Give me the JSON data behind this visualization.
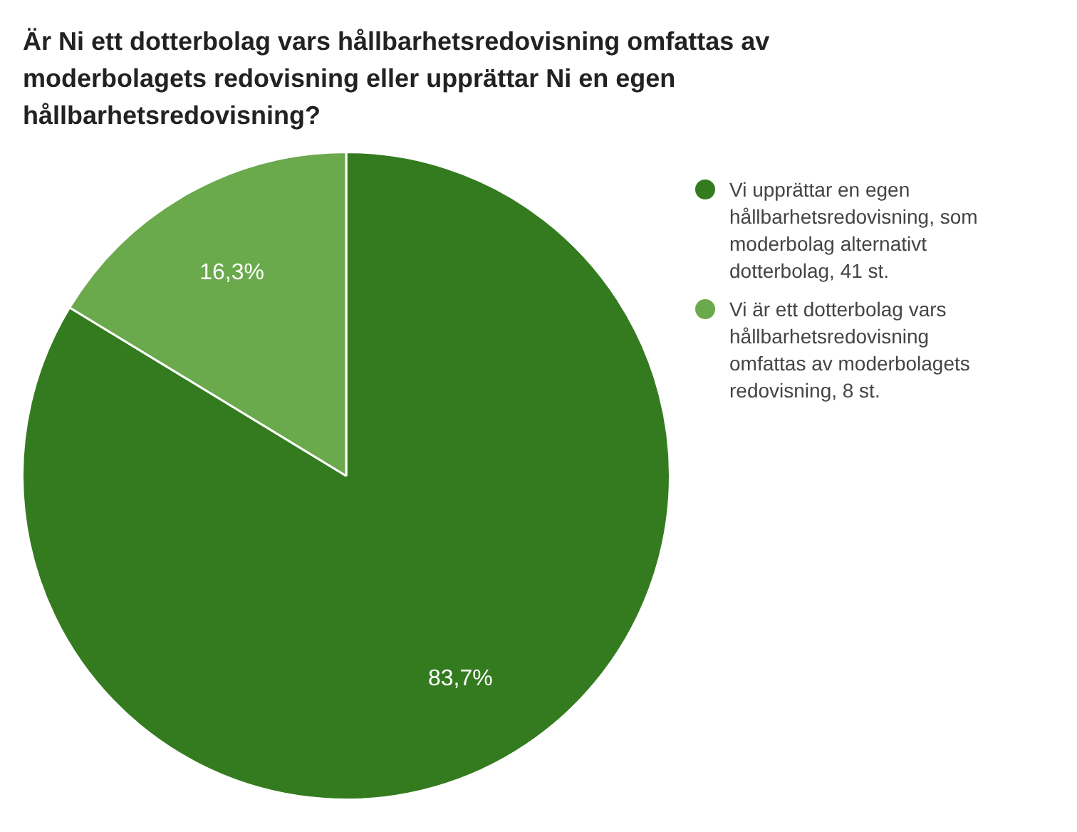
{
  "chart_data": {
    "type": "pie",
    "title": "Är Ni ett dotterbolag vars hållbarhetsredovisning omfattas av moderbolagets redovisning eller upprättar Ni en egen hållbarhetsredovisning?",
    "categories": [
      "Vi upprättar en egen hållbarhetsredovisning, som moderbolag alternativt dotterbolag, 41 st.",
      "Vi är ett dotterbolag vars hållbarhetsredovisning omfattas av moderbolagets redovisning, 8 st."
    ],
    "values": [
      83.7,
      16.3
    ],
    "colors": [
      "#347b20",
      "#6aa94c"
    ],
    "value_labels": [
      "83,7%",
      "16,3%"
    ],
    "legend": "right"
  }
}
